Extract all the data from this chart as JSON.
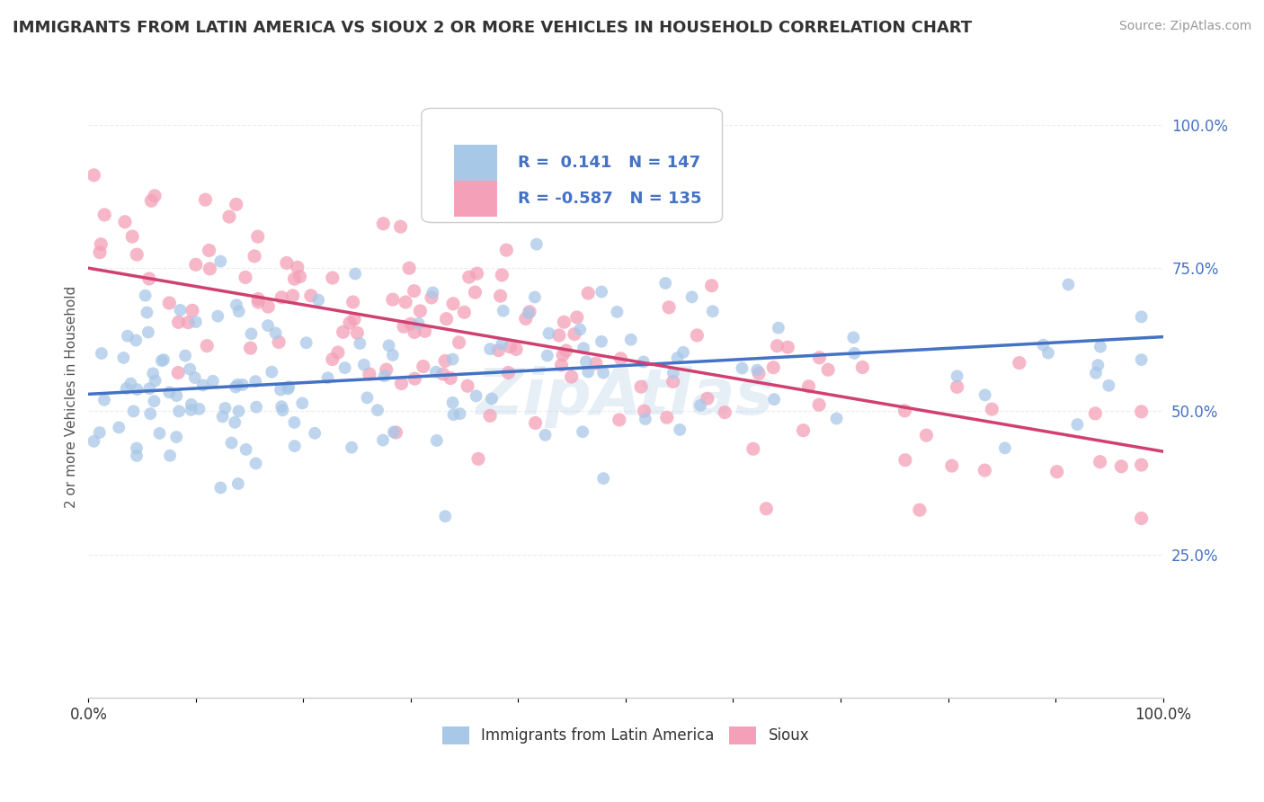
{
  "title": "IMMIGRANTS FROM LATIN AMERICA VS SIOUX 2 OR MORE VEHICLES IN HOUSEHOLD CORRELATION CHART",
  "source": "Source: ZipAtlas.com",
  "ylabel": "2 or more Vehicles in Household",
  "xlim": [
    0.0,
    1.0
  ],
  "ylim": [
    0.0,
    1.05
  ],
  "xticks": [
    0.0,
    0.1,
    0.2,
    0.3,
    0.4,
    0.5,
    0.6,
    0.7,
    0.8,
    0.9,
    1.0
  ],
  "xticklabels": [
    "0.0%",
    "",
    "",
    "",
    "",
    "",
    "",
    "",
    "",
    "",
    "100.0%"
  ],
  "yticks": [
    0.25,
    0.5,
    0.75,
    1.0
  ],
  "yticklabels": [
    "25.0%",
    "50.0%",
    "75.0%",
    "100.0%"
  ],
  "blue_color": "#a8c8e8",
  "pink_color": "#f4a0b8",
  "blue_line_color": "#4472c4",
  "pink_line_color": "#d04070",
  "R_blue": 0.141,
  "N_blue": 147,
  "R_pink": -0.587,
  "N_pink": 135,
  "legend_label_blue": "Immigrants from Latin America",
  "legend_label_pink": "Sioux",
  "blue_line_y0": 0.53,
  "blue_line_y1": 0.63,
  "pink_line_y0": 0.75,
  "pink_line_y1": 0.43,
  "watermark": "ZipAtlas",
  "background_color": "#ffffff",
  "grid_color": "#e8e8e8"
}
